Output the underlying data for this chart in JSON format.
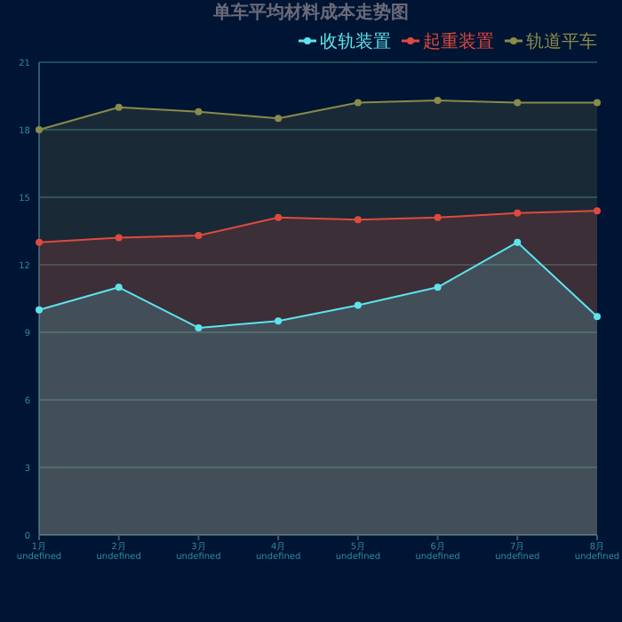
{
  "chart_data": {
    "type": "area",
    "title": "单车平均材料成本走势图",
    "categories": [
      "1月\nundefined",
      "2月\nundefined",
      "3月\nundefined",
      "4月\nundefined",
      "5月\nundefined",
      "6月\nundefined",
      "7月\nundefined",
      "8月\nundefined"
    ],
    "series": [
      {
        "name": "收轨装置",
        "color": "#5ee3ee",
        "values": [
          10.0,
          11.0,
          9.2,
          9.5,
          10.2,
          11.0,
          13.0,
          9.7
        ]
      },
      {
        "name": "起重装置",
        "color": "#e0493f",
        "values": [
          13.0,
          13.2,
          13.3,
          14.1,
          14.0,
          14.1,
          14.3,
          14.4
        ]
      },
      {
        "name": "轨道平车",
        "color": "#8a8a4a",
        "values": [
          18.0,
          19.0,
          18.8,
          18.5,
          19.2,
          19.3,
          19.2,
          19.2
        ]
      }
    ],
    "ylim": [
      0,
      21
    ],
    "yticks": [
      0,
      3,
      6,
      9,
      12,
      15,
      18,
      21
    ],
    "grid": "y",
    "legend": "top right",
    "marker": "circle",
    "line_style": "solid"
  }
}
